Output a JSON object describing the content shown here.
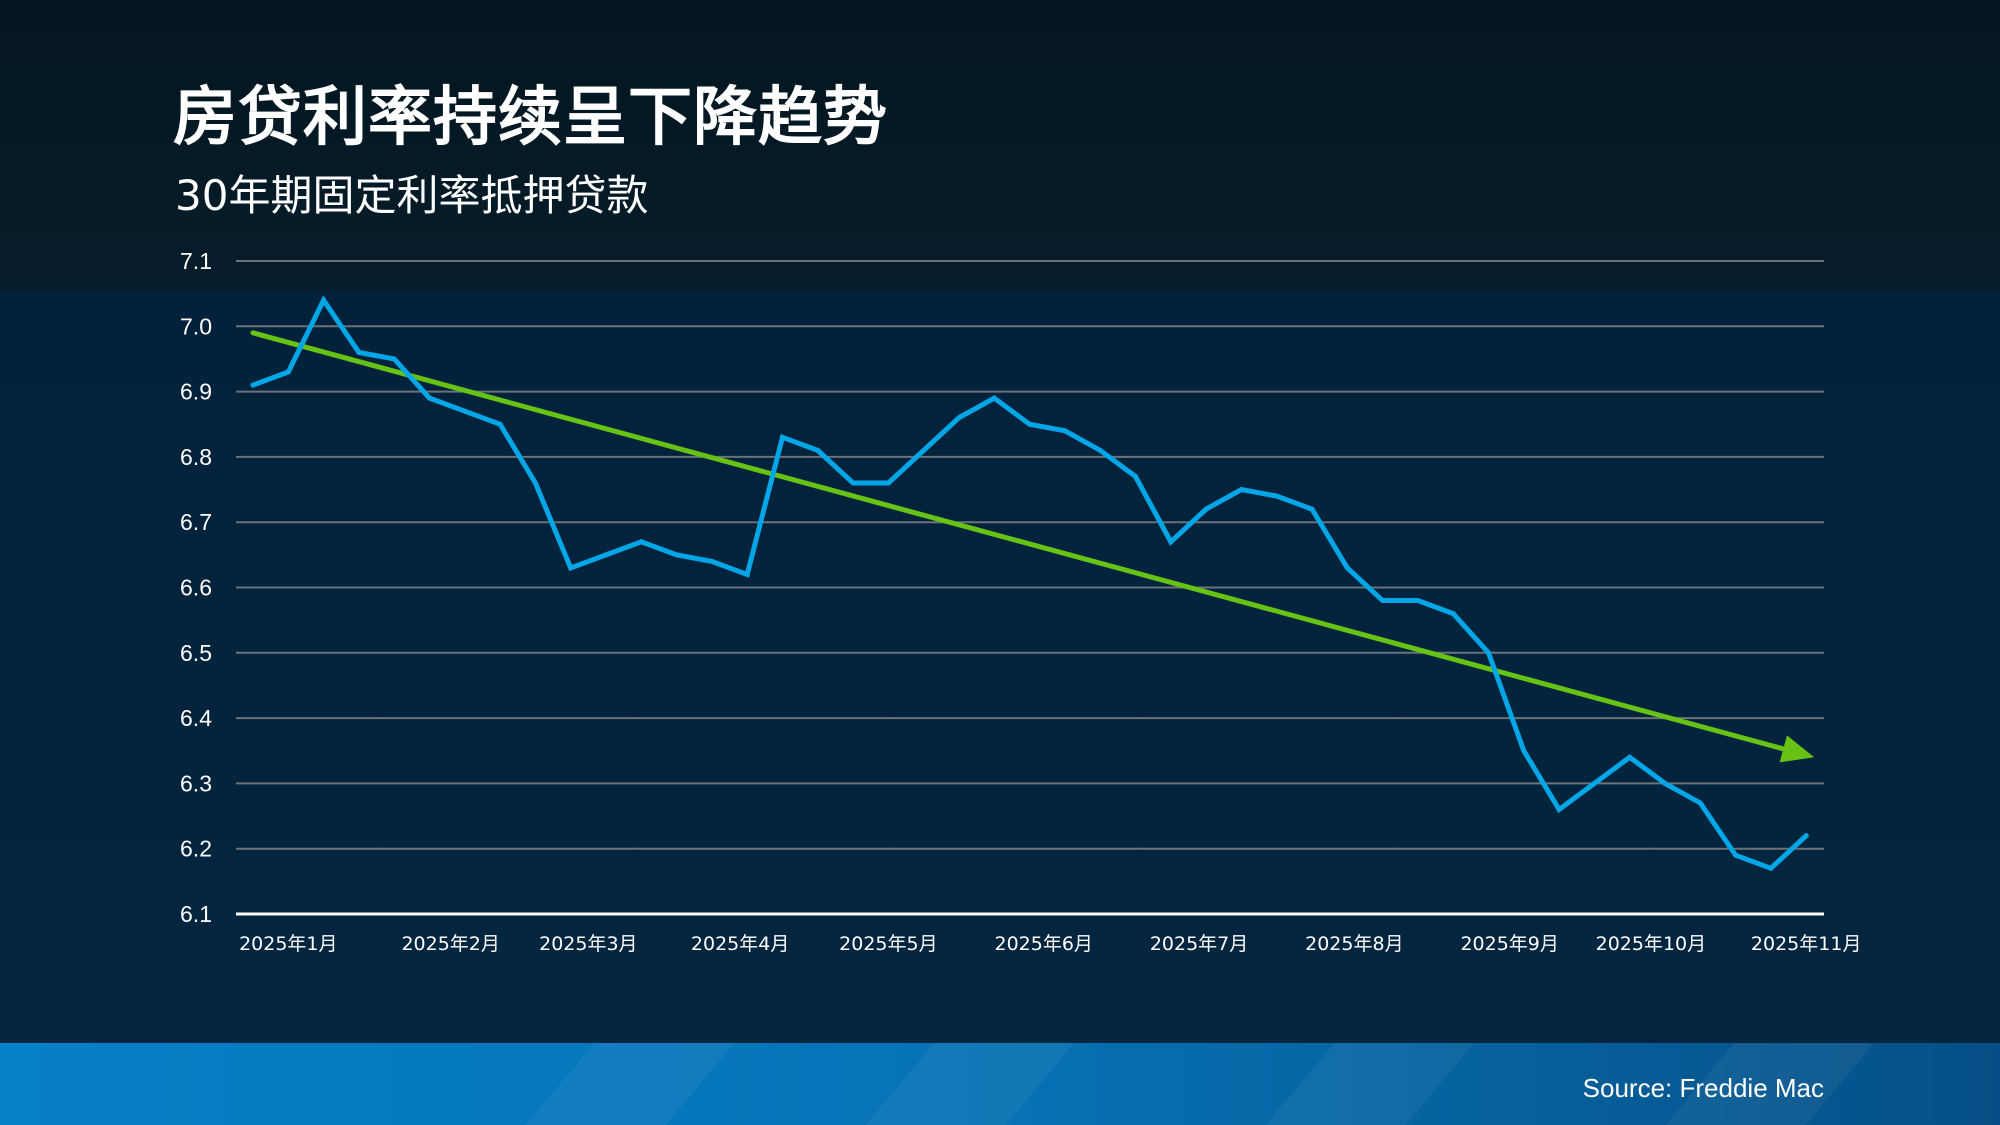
{
  "title": "房贷利率持续呈下降趋势",
  "subtitle": "30年期固定利率抵押贷款",
  "source": "Source: Freddie Mac",
  "colors": {
    "series": "#00a6e6",
    "trend": "#66c214",
    "grid": "#6b7379",
    "axis": "#ffffff"
  },
  "chart_data": {
    "type": "line",
    "title": "房贷利率持续呈下降趋势",
    "subtitle": "30年期固定利率抵押贷款",
    "ylim": [
      6.1,
      7.1
    ],
    "yticks": [
      "7.1",
      "7.0",
      "6.9",
      "6.8",
      "6.7",
      "6.6",
      "6.5",
      "6.4",
      "6.3",
      "6.2",
      "6.1"
    ],
    "ytick_values": [
      7.1,
      7.0,
      6.9,
      6.8,
      6.7,
      6.6,
      6.5,
      6.4,
      6.3,
      6.2,
      6.1
    ],
    "xlabels": [
      {
        "label": "2025年1月",
        "index": 1
      },
      {
        "label": "2025年2月",
        "index": 5.6
      },
      {
        "label": "2025年3月",
        "index": 9.5
      },
      {
        "label": "2025年4月",
        "index": 13.8
      },
      {
        "label": "2025年5月",
        "index": 18
      },
      {
        "label": "2025年6月",
        "index": 22.4
      },
      {
        "label": "2025年7月",
        "index": 26.8
      },
      {
        "label": "2025年8月",
        "index": 31.2
      },
      {
        "label": "2025年9月",
        "index": 35.6
      },
      {
        "label": "2025年10月",
        "index": 39.6
      },
      {
        "label": "2025年11月",
        "index": 44
      }
    ],
    "grid": true,
    "series": [
      {
        "name": "30年期固定利率",
        "values": [
          6.91,
          6.93,
          7.04,
          6.96,
          6.95,
          6.89,
          6.87,
          6.85,
          6.76,
          6.63,
          6.65,
          6.67,
          6.65,
          6.64,
          6.62,
          6.83,
          6.81,
          6.76,
          6.76,
          6.81,
          6.86,
          6.89,
          6.85,
          6.84,
          6.81,
          6.77,
          6.67,
          6.72,
          6.75,
          6.74,
          6.72,
          6.63,
          6.58,
          6.58,
          6.56,
          6.5,
          6.35,
          6.26,
          6.3,
          6.34,
          6.3,
          6.27,
          6.19,
          6.17,
          6.22
        ]
      },
      {
        "name": "趋势",
        "type": "trend-arrow",
        "start": {
          "index": 0,
          "value": 6.99
        },
        "end": {
          "index": 44,
          "value": 6.34
        }
      }
    ]
  }
}
